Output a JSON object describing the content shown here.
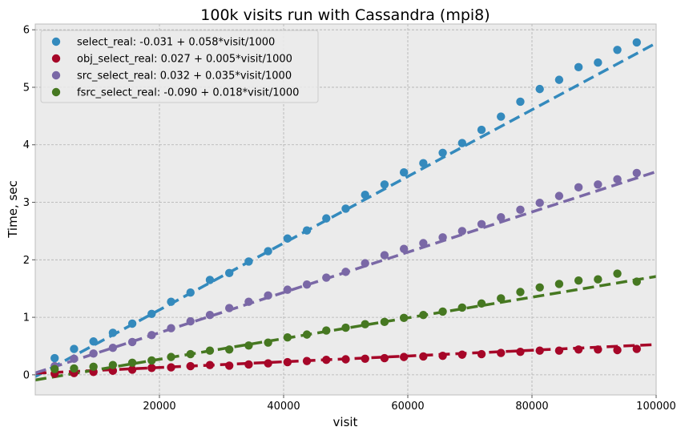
{
  "chart_data": {
    "type": "scatter",
    "title": "100k visits run with Cassandra (mpi8)",
    "xlabel": "visit",
    "ylabel": "Time, sec",
    "xlim": [
      0,
      100000
    ],
    "ylim": [
      -0.35,
      6.1
    ],
    "x_ticks": [
      20000,
      40000,
      60000,
      80000,
      100000
    ],
    "x_tick_labels": [
      "20000",
      "40000",
      "60000",
      "80000",
      "100000"
    ],
    "y_ticks": [
      0,
      1,
      2,
      3,
      4,
      5,
      6
    ],
    "y_tick_labels": [
      "0",
      "1",
      "2",
      "3",
      "4",
      "5",
      "6"
    ],
    "grid": true,
    "legend_position": "top-left",
    "colors": {
      "background": "#ebebeb",
      "grid": "#b0b0b0"
    },
    "x": [
      3125,
      6250,
      9375,
      12500,
      15625,
      18750,
      21875,
      25000,
      28125,
      31250,
      34375,
      37500,
      40625,
      43750,
      46875,
      50000,
      53125,
      56250,
      59375,
      62500,
      65625,
      68750,
      71875,
      75000,
      78125,
      81250,
      84375,
      87500,
      90625,
      93750,
      96875
    ],
    "series": [
      {
        "name": "select_real: -0.031 + 0.058*visit/1000",
        "color": "#348abd",
        "fit": {
          "intercept": -0.031,
          "slope_per_1000": 0.058
        },
        "values": [
          0.29,
          0.45,
          0.58,
          0.73,
          0.89,
          1.06,
          1.27,
          1.43,
          1.65,
          1.77,
          1.97,
          2.15,
          2.37,
          2.51,
          2.72,
          2.89,
          3.13,
          3.31,
          3.52,
          3.68,
          3.86,
          4.03,
          4.26,
          4.49,
          4.75,
          4.97,
          5.13,
          5.35,
          5.43,
          5.65,
          5.78
        ]
      },
      {
        "name": "obj_select_real: 0.027 + 0.005*visit/1000",
        "color": "#a60628",
        "fit": {
          "intercept": 0.027,
          "slope_per_1000": 0.005
        },
        "values": [
          0.02,
          0.03,
          0.05,
          0.07,
          0.09,
          0.12,
          0.13,
          0.15,
          0.17,
          0.16,
          0.18,
          0.2,
          0.22,
          0.24,
          0.26,
          0.27,
          0.28,
          0.29,
          0.31,
          0.32,
          0.33,
          0.35,
          0.36,
          0.38,
          0.4,
          0.42,
          0.42,
          0.44,
          0.44,
          0.43,
          0.45
        ]
      },
      {
        "name": "src_select_real: 0.032 + 0.035*visit/1000",
        "color": "#7a68a6",
        "fit": {
          "intercept": 0.032,
          "slope_per_1000": 0.035
        },
        "values": [
          0.15,
          0.28,
          0.37,
          0.47,
          0.57,
          0.69,
          0.81,
          0.93,
          1.04,
          1.16,
          1.27,
          1.38,
          1.48,
          1.57,
          1.69,
          1.79,
          1.94,
          2.08,
          2.19,
          2.29,
          2.39,
          2.5,
          2.62,
          2.74,
          2.87,
          2.99,
          3.11,
          3.26,
          3.31,
          3.4,
          3.51
        ]
      },
      {
        "name": "fsrc_select_real: -0.090 + 0.018*visit/1000",
        "color": "#467821",
        "fit": {
          "intercept": -0.09,
          "slope_per_1000": 0.018
        },
        "values": [
          0.1,
          0.11,
          0.14,
          0.17,
          0.21,
          0.25,
          0.31,
          0.36,
          0.42,
          0.44,
          0.51,
          0.56,
          0.65,
          0.7,
          0.77,
          0.82,
          0.88,
          0.92,
          0.99,
          1.04,
          1.1,
          1.17,
          1.24,
          1.33,
          1.44,
          1.52,
          1.58,
          1.64,
          1.66,
          1.76,
          1.62
        ]
      }
    ]
  }
}
